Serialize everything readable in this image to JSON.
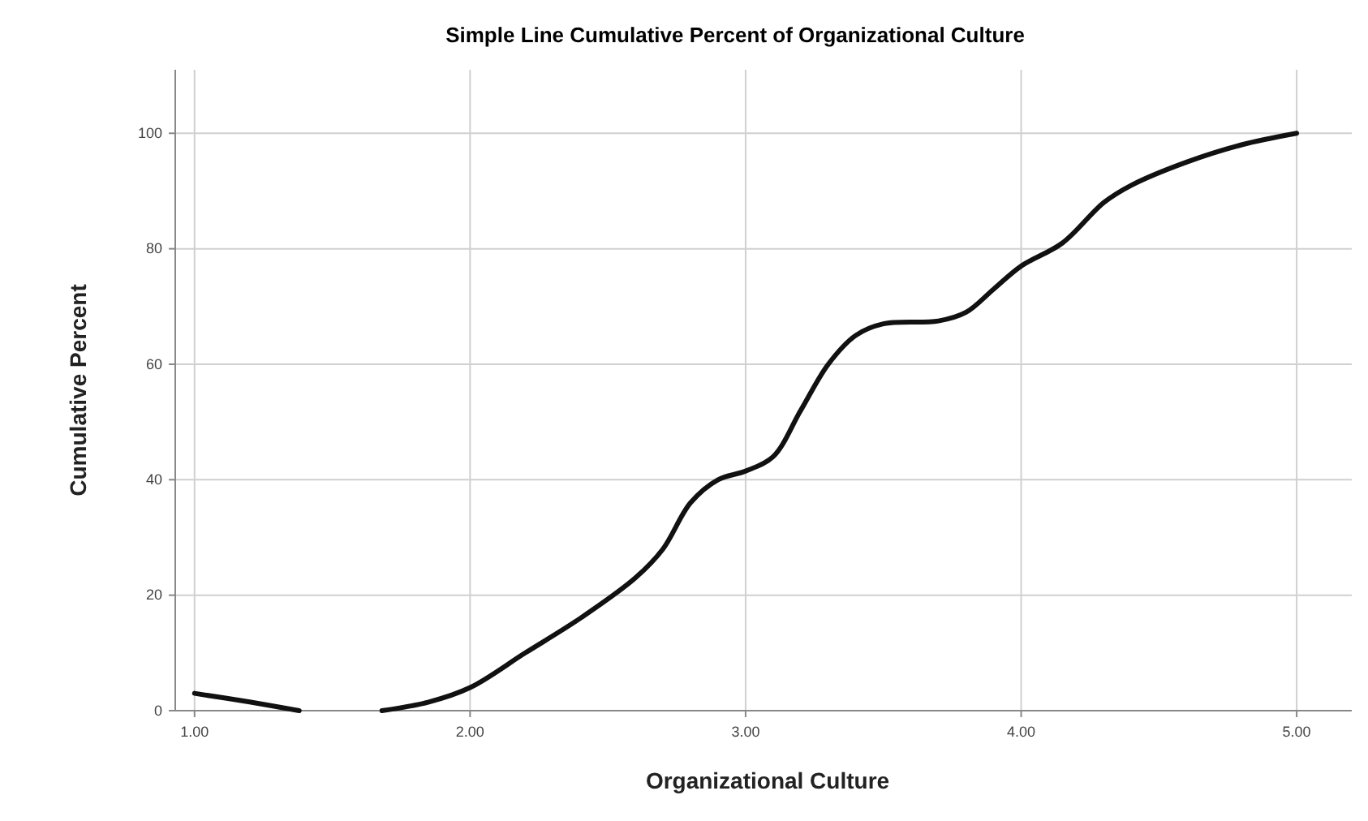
{
  "chart_data": {
    "type": "line",
    "title": "Simple Line Cumulative Percent of Organizational Culture",
    "xlabel": "Organizational Culture",
    "ylabel": "Cumulative Percent",
    "x": [
      1.0,
      1.2,
      1.38,
      1.5,
      1.68,
      1.85,
      2.0,
      2.2,
      2.4,
      2.6,
      2.7,
      2.8,
      2.9,
      3.0,
      3.1,
      3.2,
      3.3,
      3.4,
      3.5,
      3.7,
      3.8,
      3.9,
      4.0,
      4.15,
      4.3,
      4.4,
      4.6,
      4.8,
      5.0
    ],
    "series": [
      {
        "color": "#111111",
        "values": [
          3,
          1.5,
          0,
          null,
          0,
          1.5,
          4,
          10,
          16,
          23,
          28,
          36,
          40,
          41.5,
          44,
          52,
          60,
          65,
          67,
          67.5,
          69,
          73,
          77,
          81,
          88,
          91,
          95,
          98,
          100
        ]
      }
    ],
    "xlim": [
      0.93,
      5.2
    ],
    "ylim": [
      0,
      111
    ],
    "xticks": [
      {
        "value": 1,
        "label": "1.00"
      },
      {
        "value": 2,
        "label": "2.00"
      },
      {
        "value": 3,
        "label": "3.00"
      },
      {
        "value": 4,
        "label": "4.00"
      },
      {
        "value": 5,
        "label": "5.00"
      }
    ],
    "yticks": [
      0,
      20,
      40,
      60,
      80,
      100
    ],
    "grid": true,
    "marker": "none",
    "line_style": "solid"
  }
}
